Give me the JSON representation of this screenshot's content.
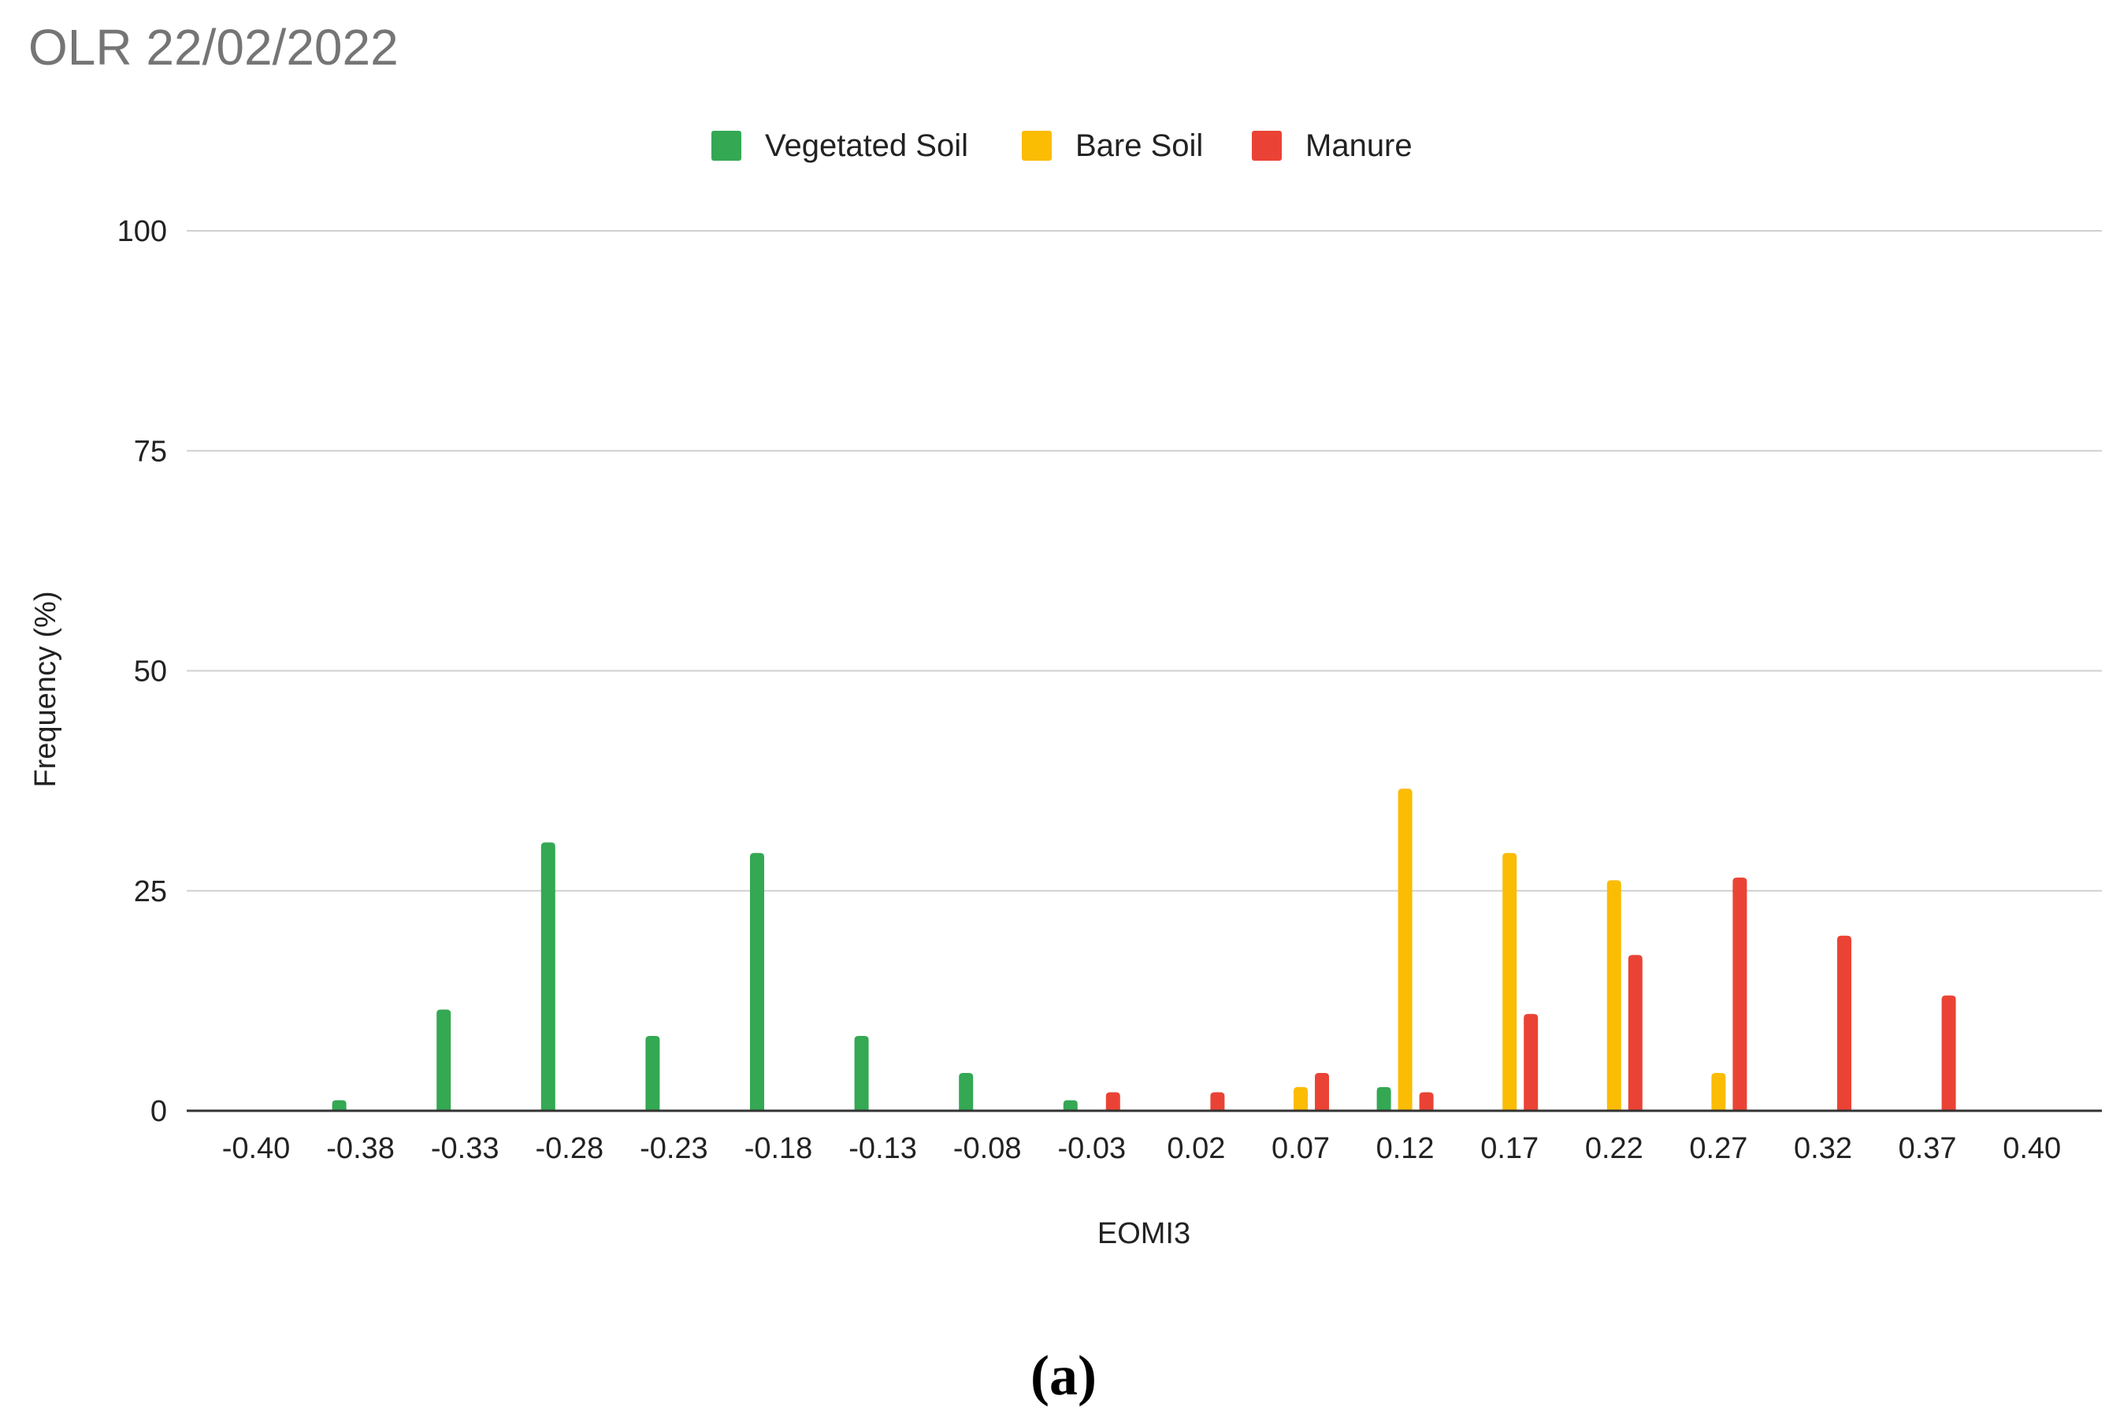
{
  "chart_data": {
    "type": "bar",
    "title": "OLR 22/02/2022",
    "xlabel": "EOMI3",
    "ylabel": "Frequency (%)",
    "ylim": [
      0,
      100
    ],
    "yticks": [
      "0",
      "25",
      "50",
      "75",
      "100"
    ],
    "grid": true,
    "legend_position": "top-center",
    "categories": [
      "-0.40",
      "-0.38",
      "-0.33",
      "-0.28",
      "-0.23",
      "-0.18",
      "-0.13",
      "-0.08",
      "-0.03",
      "0.02",
      "0.07",
      "0.12",
      "0.17",
      "0.22",
      "0.27",
      "0.32",
      "0.37",
      "0.40"
    ],
    "series": [
      {
        "name": "Vegetated Soil",
        "color": "#34a853",
        "values": [
          0,
          1.2,
          11.5,
          30.5,
          8.5,
          29.3,
          8.5,
          4.3,
          1.2,
          0,
          0,
          2.7,
          0,
          0,
          0,
          0,
          0,
          0
        ]
      },
      {
        "name": "Bare Soil",
        "color": "#fbbc04",
        "values": [
          0,
          0,
          0,
          0,
          0,
          0,
          0,
          0,
          0,
          0,
          2.7,
          36.6,
          29.3,
          26.2,
          4.3,
          0,
          0,
          0
        ]
      },
      {
        "name": "Manure",
        "color": "#ea4335",
        "values": [
          0,
          0,
          0,
          0,
          0,
          0,
          0,
          0,
          2.1,
          2.1,
          4.3,
          2.1,
          11.0,
          17.7,
          26.5,
          19.9,
          13.1,
          0
        ]
      }
    ]
  },
  "caption": "(a)"
}
